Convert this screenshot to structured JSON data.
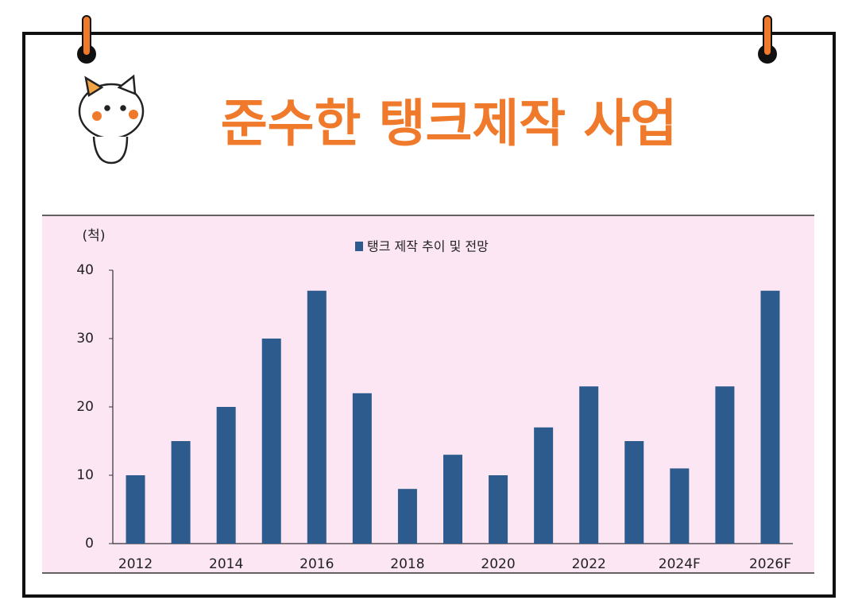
{
  "chart_data": {
    "type": "bar",
    "title": "준수한 탱크제작 사업",
    "y_label": "(척)",
    "categories": [
      "2012",
      null,
      "2014",
      null,
      "2016",
      null,
      "2018",
      null,
      "2020",
      null,
      "2022",
      null,
      "2024F",
      null,
      "2026F"
    ],
    "series": [
      {
        "name": "탱크 제작 추이 및 전망",
        "color": "#2d5b8e",
        "values": [
          10,
          15,
          20,
          30,
          37,
          22,
          8,
          13,
          10,
          17,
          23,
          15,
          11,
          23,
          37
        ]
      }
    ],
    "ylim": [
      0,
      40
    ],
    "yticks": [
      0,
      10,
      20,
      30,
      40
    ],
    "grid": false
  }
}
